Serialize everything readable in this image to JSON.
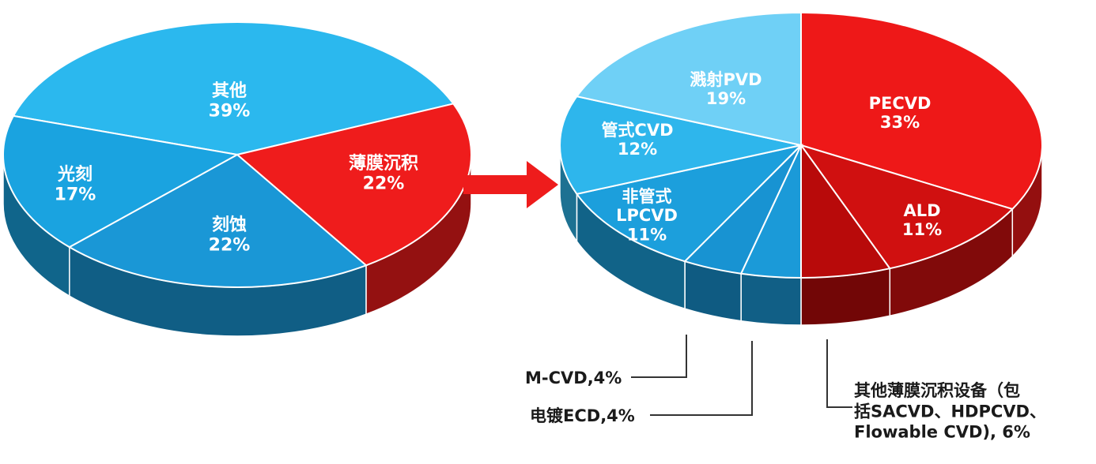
{
  "chart_data": [
    {
      "type": "pie",
      "title": "",
      "slices": [
        {
          "name": "其他",
          "label": "其他",
          "value": 39,
          "pct_label": "39%",
          "color": "#2bb8ee"
        },
        {
          "name": "薄膜沉积",
          "label": "薄膜沉积",
          "value": 22,
          "pct_label": "22%",
          "color": "#ef1c1c"
        },
        {
          "name": "刻蚀",
          "label": "刻蚀",
          "value": 22,
          "pct_label": "22%",
          "color": "#1a97d6"
        },
        {
          "name": "光刻",
          "label": "光刻",
          "value": 17,
          "pct_label": "17%",
          "color": "#1aa3e0"
        }
      ]
    },
    {
      "type": "pie",
      "title": "",
      "slices": [
        {
          "name": "PECVD",
          "label": "PECVD",
          "value": 33,
          "pct_label": "33%",
          "color": "#ee1818"
        },
        {
          "name": "ALD",
          "label": "ALD",
          "value": 11,
          "pct_label": "11%",
          "color": "#d01010"
        },
        {
          "name": "其他薄膜沉积设备（包括SACVD、HDPCVD、Flowable CVD)",
          "value": 6,
          "color": "#b80a0a",
          "callout": [
            "其他薄膜沉积设备（包",
            "括SACVD、HDPCVD、",
            "Flowable CVD), 6%"
          ]
        },
        {
          "name": "电镀ECD",
          "value": 4,
          "color": "#1b9ad8",
          "callout": [
            "电镀ECD,4%"
          ]
        },
        {
          "name": "M-CVD",
          "value": 4,
          "color": "#1893d2",
          "callout": [
            "M-CVD,4%"
          ]
        },
        {
          "name": "非管式LPCVD",
          "label": "非管式|LPCVD",
          "value": 11,
          "pct_label": "11%",
          "color": "#1c9fdc"
        },
        {
          "name": "管式CVD",
          "label": "管式CVD",
          "value": 12,
          "pct_label": "12%",
          "color": "#2eb6ec"
        },
        {
          "name": "溅射PVD",
          "label": "溅射PVD",
          "value": 19,
          "pct_label": "19%",
          "color": "#6fd0f6"
        }
      ]
    }
  ]
}
